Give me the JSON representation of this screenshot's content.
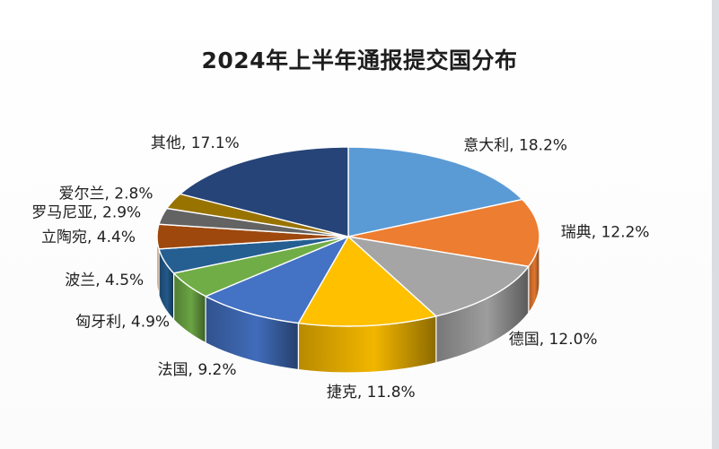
{
  "chart_data": {
    "type": "pie",
    "style": "3d",
    "title": "2024年上半年通报提交国分布",
    "slices": [
      {
        "label": "意大利",
        "value": 18.2,
        "display": "18.2%",
        "color": "#5b9bd5"
      },
      {
        "label": "瑞典",
        "value": 12.2,
        "display": "12.2%",
        "color": "#ed7d31"
      },
      {
        "label": "德国",
        "value": 12.0,
        "display": "12.0%",
        "color": "#a5a5a5"
      },
      {
        "label": "捷克",
        "value": 11.8,
        "display": "11.8%",
        "color": "#ffc000"
      },
      {
        "label": "法国",
        "value": 9.2,
        "display": "9.2%",
        "color": "#4472c4"
      },
      {
        "label": "匈牙利",
        "value": 4.9,
        "display": "4.9%",
        "color": "#70ad47"
      },
      {
        "label": "波兰",
        "value": 4.5,
        "display": "4.5%",
        "color": "#255e91"
      },
      {
        "label": "立陶宛",
        "value": 4.4,
        "display": "4.4%",
        "color": "#9e480e"
      },
      {
        "label": "罗马尼亚",
        "value": 2.9,
        "display": "2.9%",
        "color": "#636363"
      },
      {
        "label": "爱尔兰",
        "value": 2.8,
        "display": "2.8%",
        "color": "#997300"
      },
      {
        "label": "其他",
        "value": 17.1,
        "display": "17.1%",
        "color": "#264478"
      }
    ]
  }
}
